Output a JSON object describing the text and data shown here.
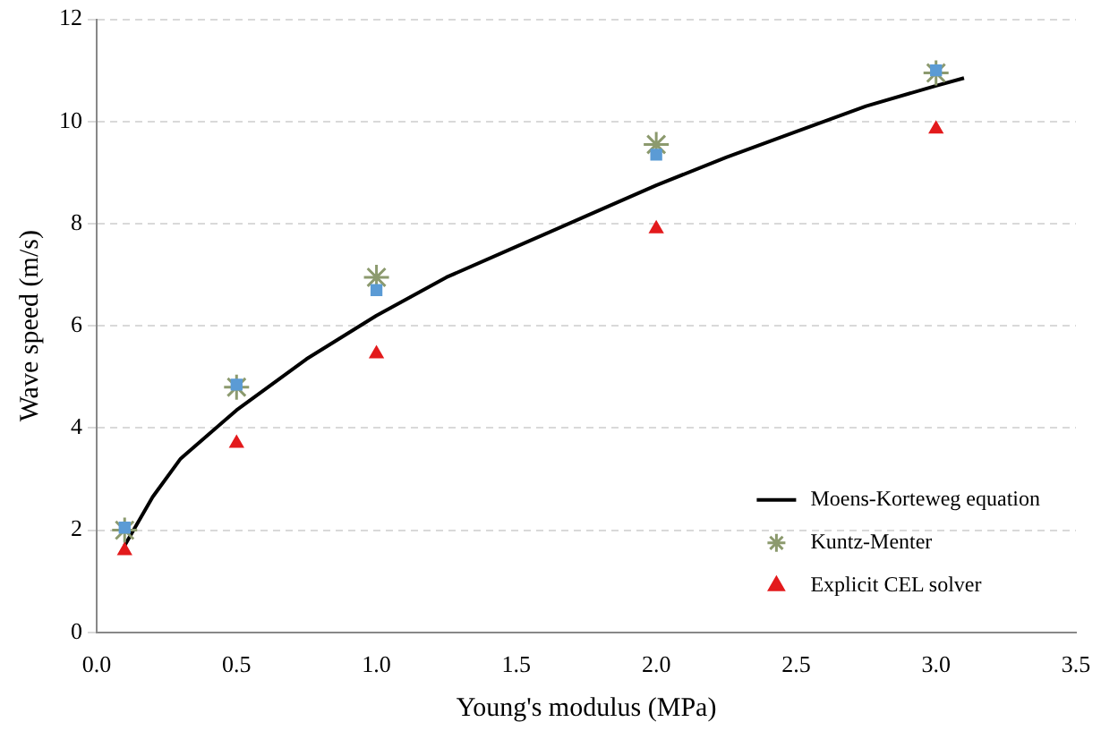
{
  "chart_data": {
    "type": "scatter",
    "xlabel": "Young's modulus (MPa)",
    "ylabel": "Wave speed (m/s)",
    "xlim": [
      0,
      3.5
    ],
    "xticks": [
      {
        "value": 0,
        "label": "0.0"
      },
      {
        "value": 0.5,
        "label": "0.5"
      },
      {
        "value": 1,
        "label": "1.0"
      },
      {
        "value": 1.5,
        "label": "1.5"
      },
      {
        "value": 2,
        "label": "2.0"
      },
      {
        "value": 2.5,
        "label": "2.5"
      },
      {
        "value": 3,
        "label": "3.0"
      },
      {
        "value": 3.5,
        "label": "3.5"
      }
    ],
    "ylim": [
      0,
      12
    ],
    "yticks": [
      0,
      2,
      4,
      6,
      8,
      10,
      12
    ],
    "grid": "y",
    "legend": "bottom right",
    "series": [
      {
        "name": "Moens-Korteweg equation",
        "type": "line",
        "marker": "none",
        "color": "#000000",
        "x": [
          0.1,
          0.2,
          0.3,
          0.5,
          0.75,
          1.0,
          1.25,
          1.5,
          1.75,
          2.0,
          2.25,
          2.5,
          2.75,
          3.0,
          3.1
        ],
        "values": [
          1.7,
          2.65,
          3.4,
          4.35,
          5.35,
          6.2,
          6.95,
          7.55,
          8.15,
          8.75,
          9.3,
          9.8,
          10.3,
          10.7,
          10.85
        ]
      },
      {
        "name": "Kuntz-Menter",
        "marker": "cross",
        "color": "#8c9a6e",
        "x": [
          0.1,
          0.5,
          1.0,
          2.0,
          3.0
        ],
        "values": [
          2.0,
          4.8,
          6.95,
          9.55,
          10.95
        ]
      },
      {
        "marker": "square",
        "color": "#5b9bd5",
        "x": [
          0.1,
          0.5,
          1.0,
          2.0,
          3.0
        ],
        "values": [
          2.05,
          4.85,
          6.7,
          9.35,
          11.0
        ]
      },
      {
        "name": "Explicit CEL solver",
        "marker": "triangle",
        "color": "#e31a1c",
        "x": [
          0.1,
          0.5,
          1.0,
          2.0,
          3.0
        ],
        "values": [
          1.6,
          3.7,
          5.45,
          7.9,
          9.85
        ]
      }
    ]
  }
}
